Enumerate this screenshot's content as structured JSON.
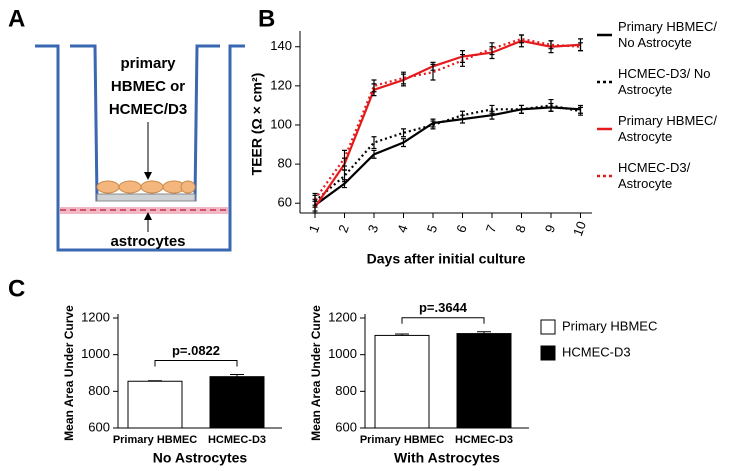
{
  "panel_labels": [
    "A",
    "B",
    "C"
  ],
  "diagram": {
    "insert_label": [
      "primary",
      "HBMEC or",
      "HCMEC/D3"
    ],
    "bottom_label": "astrocytes"
  },
  "chart_data": [
    {
      "type": "line",
      "ylabel": "TEER (Ω × cm²)",
      "xlabel": "Days after initial culture",
      "categories": [
        "1",
        "2",
        "3",
        "4",
        "5",
        "6",
        "7",
        "8",
        "9",
        "10"
      ],
      "ylim": [
        55,
        146
      ],
      "yticks": [
        60,
        80,
        100,
        120,
        140
      ],
      "series": [
        {
          "name": "Primary HBMEC/ No Astrocyte",
          "color": "#000000",
          "dashed": false,
          "values": [
            59,
            70,
            85,
            91,
            101,
            103,
            105,
            108,
            109,
            108
          ],
          "errors": [
            3,
            2,
            2,
            2,
            2,
            2,
            2,
            2,
            2,
            2
          ]
        },
        {
          "name": "HCMEC-D3/ No Astrocyte",
          "color": "#000000",
          "dashed": true,
          "values": [
            61,
            74,
            91,
            96,
            100,
            105,
            108,
            108,
            110,
            107
          ],
          "errors": [
            3,
            3,
            3,
            2,
            2,
            2,
            2,
            2,
            3,
            2
          ]
        },
        {
          "name": "Primary HBMEC/ Astrocyte",
          "color": "#e41a1c",
          "dashed": false,
          "values": [
            58,
            80,
            118,
            123,
            130,
            135,
            137,
            143,
            140,
            141
          ],
          "errors": [
            3,
            3,
            3,
            3,
            2,
            3,
            3,
            3,
            3,
            3
          ]
        },
        {
          "name": "HCMEC-D3/ Astrocyte",
          "color": "#e41a1c",
          "dashed": true,
          "values": [
            62,
            83,
            120,
            124,
            127,
            133,
            139,
            144,
            141,
            140
          ],
          "errors": [
            3,
            4,
            3,
            3,
            4,
            3,
            3,
            2,
            2,
            2
          ]
        }
      ]
    },
    {
      "type": "bar",
      "ylabel": "Mean Area Under Curve",
      "xlabel": "No Astrocytes",
      "annotation": "p=.0822",
      "categories": [
        "Primary HBMEC",
        "HCMEC-D3"
      ],
      "ylim": [
        600,
        1200
      ],
      "yticks": [
        600,
        800,
        1000,
        1200
      ],
      "legend": false,
      "series": [
        {
          "name": "Primary HBMEC",
          "color": "#ffffff",
          "values": [
            855,
            null
          ],
          "errors": [
            3,
            null
          ]
        },
        {
          "name": "HCMEC-D3",
          "color": "#000000",
          "values": [
            null,
            880
          ],
          "errors": [
            null,
            12
          ]
        }
      ]
    },
    {
      "type": "bar",
      "ylabel": "Mean Area Under Curve",
      "xlabel": "With Astrocytes",
      "annotation": "p=.3644",
      "categories": [
        "Primary HBMEC",
        "HCMEC-D3"
      ],
      "ylim": [
        600,
        1200
      ],
      "yticks": [
        600,
        800,
        1000,
        1200
      ],
      "legend": true,
      "series": [
        {
          "name": "Primary HBMEC",
          "color": "#ffffff",
          "values": [
            1105,
            null
          ],
          "errors": [
            8,
            null
          ]
        },
        {
          "name": "HCMEC-D3",
          "color": "#000000",
          "values": [
            null,
            1115
          ],
          "errors": [
            null,
            10
          ]
        }
      ]
    }
  ]
}
